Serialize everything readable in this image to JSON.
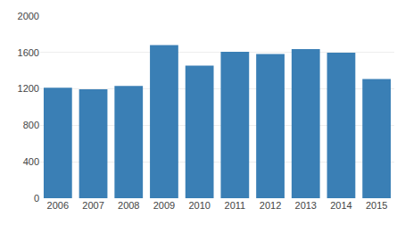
{
  "chart_data": {
    "type": "bar",
    "categories": [
      "2006",
      "2007",
      "2008",
      "2009",
      "2010",
      "2011",
      "2012",
      "2013",
      "2014",
      "2015"
    ],
    "values": [
      1213,
      1196,
      1232,
      1682,
      1455,
      1608,
      1583,
      1638,
      1598,
      1308
    ],
    "color": "#3a7fb5",
    "ylim": [
      0,
      2000
    ],
    "yticks": [
      0,
      400,
      800,
      1200,
      1600,
      2000
    ],
    "grid": true
  }
}
